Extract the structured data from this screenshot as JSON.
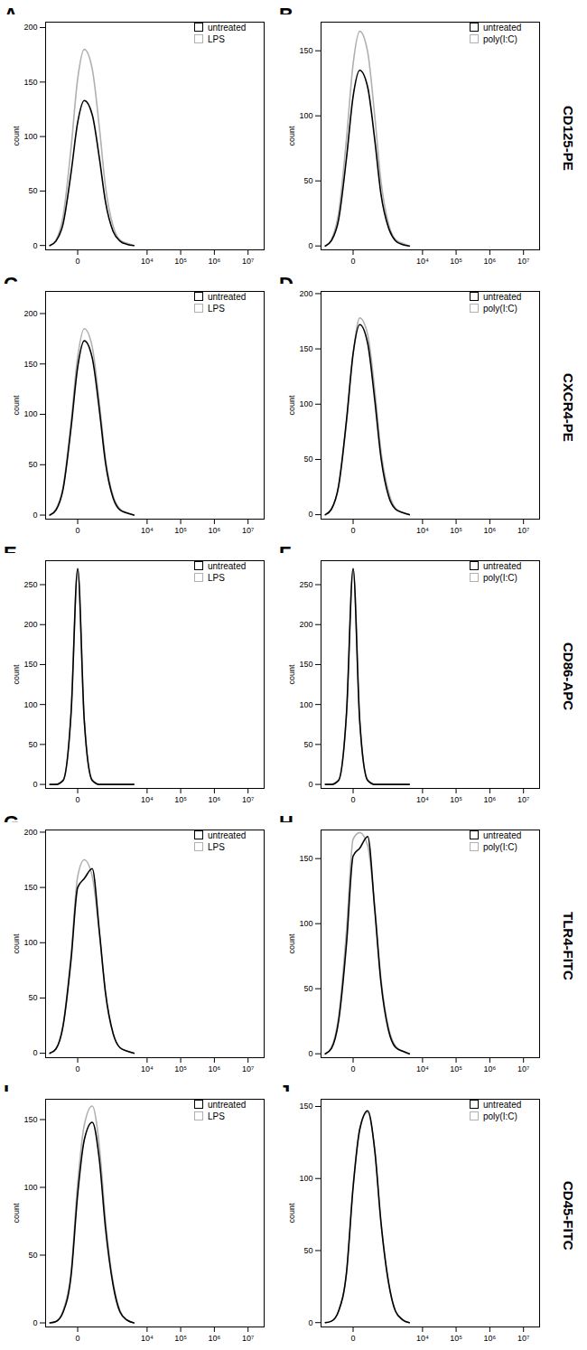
{
  "chart_data": [
    {
      "type": "line",
      "title": "A",
      "ylabel": "count",
      "log": "x",
      "legend": "top-right",
      "x": [
        -500,
        -300,
        -150,
        -50,
        0,
        50,
        150,
        300,
        500,
        900,
        1500,
        2500,
        4000
      ],
      "xlim": [
        -700,
        30000000
      ],
      "xticks": [
        0,
        {
          "value": 10000,
          "label": "10⁴"
        },
        {
          "value": 100000,
          "label": "10⁵"
        },
        {
          "value": 1000000,
          "label": "10⁶"
        },
        {
          "value": 10000000,
          "label": "10⁷"
        }
      ],
      "ylim": [
        -4,
        205
      ],
      "yticks": [
        0,
        50,
        100,
        150,
        200
      ],
      "series": [
        {
          "name": "untreated",
          "color": "#000000",
          "values": [
            0,
            4,
            20,
            67,
            113,
            133,
            120,
            80,
            40,
            13,
            4,
            1,
            0
          ]
        },
        {
          "name": "LPS",
          "color": "#b0b0b0",
          "values": [
            0,
            5,
            27,
            90,
            153,
            180,
            162,
            108,
            54,
            18,
            5,
            2,
            0
          ]
        }
      ]
    },
    {
      "type": "line",
      "title": "B",
      "ylabel": "count",
      "log": "x",
      "legend": "top-right",
      "x": [
        -500,
        -300,
        -150,
        -50,
        0,
        50,
        150,
        300,
        500,
        900,
        1500,
        2500,
        4000
      ],
      "xlim": [
        -700,
        30000000
      ],
      "xticks": [
        0,
        {
          "value": 10000,
          "label": "10⁴"
        },
        {
          "value": 100000,
          "label": "10⁵"
        },
        {
          "value": 1000000,
          "label": "10⁶"
        },
        {
          "value": 10000000,
          "label": "10⁷"
        }
      ],
      "ylim": [
        -3,
        172
      ],
      "yticks": [
        0,
        50,
        100,
        150
      ],
      "series": [
        {
          "name": "untreated",
          "color": "#000000",
          "values": [
            0,
            4,
            20,
            68,
            115,
            135,
            122,
            81,
            40,
            14,
            4,
            1,
            0
          ]
        },
        {
          "name": "poly(I:C)",
          "color": "#b0b0b0",
          "values": [
            0,
            5,
            25,
            83,
            140,
            165,
            149,
            99,
            50,
            17,
            5,
            2,
            0
          ]
        }
      ]
    },
    {
      "type": "line",
      "title": "C",
      "ylabel": "count",
      "log": "x",
      "legend": "top-right",
      "x": [
        -500,
        -300,
        -150,
        -50,
        0,
        50,
        150,
        300,
        500,
        900,
        1500,
        2500,
        4000
      ],
      "xlim": [
        -700,
        30000000
      ],
      "xticks": [
        0,
        {
          "value": 10000,
          "label": "10⁴"
        },
        {
          "value": 100000,
          "label": "10⁵"
        },
        {
          "value": 1000000,
          "label": "10⁶"
        },
        {
          "value": 10000000,
          "label": "10⁷"
        }
      ],
      "ylim": [
        -4,
        222
      ],
      "yticks": [
        0,
        50,
        100,
        150,
        200
      ],
      "series": [
        {
          "name": "untreated",
          "color": "#000000",
          "values": [
            0,
            5,
            26,
            87,
            147,
            173,
            156,
            104,
            52,
            17,
            5,
            2,
            0
          ]
        },
        {
          "name": "LPS",
          "color": "#b0b0b0",
          "values": [
            0,
            6,
            28,
            93,
            157,
            185,
            167,
            111,
            56,
            19,
            6,
            2,
            0
          ]
        }
      ]
    },
    {
      "type": "line",
      "title": "D",
      "ylabel": "count",
      "log": "x",
      "legend": "top-right",
      "x": [
        -500,
        -300,
        -150,
        -50,
        0,
        50,
        150,
        300,
        500,
        900,
        1500,
        2500,
        4000
      ],
      "xlim": [
        -700,
        30000000
      ],
      "xticks": [
        0,
        {
          "value": 10000,
          "label": "10⁴"
        },
        {
          "value": 100000,
          "label": "10⁵"
        },
        {
          "value": 1000000,
          "label": "10⁶"
        },
        {
          "value": 10000000,
          "label": "10⁷"
        }
      ],
      "ylim": [
        -4,
        202
      ],
      "yticks": [
        0,
        50,
        100,
        150,
        200
      ],
      "series": [
        {
          "name": "untreated",
          "color": "#000000",
          "values": [
            0,
            5,
            26,
            86,
            146,
            172,
            155,
            103,
            52,
            17,
            5,
            2,
            0
          ]
        },
        {
          "name": "poly(I:C)",
          "color": "#b0b0b0",
          "values": [
            0,
            5,
            25,
            84,
            145,
            178,
            163,
            112,
            58,
            21,
            6,
            2,
            0
          ]
        }
      ]
    },
    {
      "type": "line",
      "title": "E",
      "ylabel": "count",
      "log": "x",
      "legend": "top-right",
      "x": [
        -500,
        -300,
        -150,
        -50,
        0,
        50,
        150,
        300,
        500,
        900,
        1500,
        2500,
        4000
      ],
      "xlim": [
        -700,
        30000000
      ],
      "xticks": [
        0,
        {
          "value": 10000,
          "label": "10⁴"
        },
        {
          "value": 100000,
          "label": "10⁵"
        },
        {
          "value": 1000000,
          "label": "10⁶"
        },
        {
          "value": 10000000,
          "label": "10⁷"
        }
      ],
      "ylim": [
        -5,
        280
      ],
      "yticks": [
        0,
        50,
        100,
        150,
        200,
        250
      ],
      "series": [
        {
          "name": "untreated",
          "color": "#000000",
          "values": [
            0,
            0,
            5,
            90,
            270,
            80,
            5,
            0,
            0,
            0,
            0,
            0,
            0
          ]
        },
        {
          "name": "LPS",
          "color": "#b0b0b0",
          "values": [
            0,
            0,
            5,
            90,
            270,
            80,
            5,
            0,
            0,
            0,
            0,
            0,
            0
          ]
        }
      ]
    },
    {
      "type": "line",
      "title": "F",
      "ylabel": "count",
      "log": "x",
      "legend": "top-right",
      "x": [
        -500,
        -300,
        -150,
        -50,
        0,
        50,
        150,
        300,
        500,
        900,
        1500,
        2500,
        4000
      ],
      "xlim": [
        -700,
        30000000
      ],
      "xticks": [
        0,
        {
          "value": 10000,
          "label": "10⁴"
        },
        {
          "value": 100000,
          "label": "10⁵"
        },
        {
          "value": 1000000,
          "label": "10⁶"
        },
        {
          "value": 10000000,
          "label": "10⁷"
        }
      ],
      "ylim": [
        -5,
        280
      ],
      "yticks": [
        0,
        50,
        100,
        150,
        200,
        250
      ],
      "series": [
        {
          "name": "untreated",
          "color": "#000000",
          "values": [
            0,
            0,
            5,
            90,
            270,
            80,
            5,
            0,
            0,
            0,
            0,
            0,
            0
          ]
        },
        {
          "name": "poly(I:C)",
          "color": "#b0b0b0",
          "values": [
            0,
            0,
            5,
            90,
            270,
            80,
            5,
            0,
            0,
            0,
            0,
            0,
            0
          ]
        }
      ]
    },
    {
      "type": "line",
      "title": "G",
      "ylabel": "count",
      "log": "x",
      "legend": "top-right",
      "x": [
        -500,
        -300,
        -150,
        -50,
        0,
        50,
        150,
        300,
        500,
        900,
        1500,
        2500,
        4000
      ],
      "xlim": [
        -700,
        30000000
      ],
      "xticks": [
        0,
        {
          "value": 10000,
          "label": "10⁴"
        },
        {
          "value": 100000,
          "label": "10⁵"
        },
        {
          "value": 1000000,
          "label": "10⁶"
        },
        {
          "value": 10000000,
          "label": "10⁷"
        }
      ],
      "ylim": [
        -4,
        202
      ],
      "yticks": [
        0,
        50,
        100,
        150,
        200
      ],
      "series": [
        {
          "name": "untreated",
          "color": "#000000",
          "values": [
            0,
            4,
            25,
            85,
            150,
            158,
            167,
            110,
            55,
            18,
            5,
            2,
            0
          ]
        },
        {
          "name": "LPS",
          "color": "#b0b0b0",
          "values": [
            0,
            4,
            26,
            90,
            160,
            175,
            160,
            108,
            54,
            18,
            5,
            2,
            0
          ]
        }
      ]
    },
    {
      "type": "line",
      "title": "H",
      "ylabel": "count",
      "log": "x",
      "legend": "top-right",
      "x": [
        -500,
        -300,
        -150,
        -50,
        0,
        50,
        150,
        300,
        500,
        900,
        1500,
        2500,
        4000
      ],
      "xlim": [
        -700,
        30000000
      ],
      "xticks": [
        0,
        {
          "value": 10000,
          "label": "10⁴"
        },
        {
          "value": 100000,
          "label": "10⁵"
        },
        {
          "value": 1000000,
          "label": "10⁶"
        },
        {
          "value": 10000000,
          "label": "10⁷"
        }
      ],
      "ylim": [
        -3,
        172
      ],
      "yticks": [
        0,
        50,
        100,
        150
      ],
      "series": [
        {
          "name": "untreated",
          "color": "#000000",
          "values": [
            0,
            4,
            25,
            85,
            152,
            158,
            167,
            110,
            55,
            18,
            5,
            2,
            0
          ]
        },
        {
          "name": "poly(I:C)",
          "color": "#b0b0b0",
          "values": [
            0,
            5,
            28,
            95,
            165,
            170,
            160,
            112,
            58,
            20,
            6,
            2,
            0
          ]
        }
      ]
    },
    {
      "type": "line",
      "title": "I",
      "ylabel": "count",
      "log": "x",
      "legend": "top-right",
      "x": [
        -500,
        -300,
        -150,
        -50,
        0,
        50,
        150,
        300,
        500,
        900,
        1500,
        2500,
        4000
      ],
      "xlim": [
        -700,
        30000000
      ],
      "xticks": [
        0,
        {
          "value": 10000,
          "label": "10⁴"
        },
        {
          "value": 100000,
          "label": "10⁵"
        },
        {
          "value": 1000000,
          "label": "10⁶"
        },
        {
          "value": 10000000,
          "label": "10⁷"
        }
      ],
      "ylim": [
        -3,
        165
      ],
      "yticks": [
        0,
        50,
        100,
        150
      ],
      "series": [
        {
          "name": "untreated",
          "color": "#000000",
          "values": [
            0,
            1,
            8,
            35,
            95,
            135,
            148,
            120,
            70,
            28,
            8,
            2,
            0
          ]
        },
        {
          "name": "LPS",
          "color": "#b0b0b0",
          "values": [
            0,
            1,
            9,
            38,
            103,
            146,
            160,
            130,
            76,
            30,
            9,
            2,
            0
          ]
        }
      ]
    },
    {
      "type": "line",
      "title": "J",
      "ylabel": "count",
      "log": "x",
      "legend": "top-right",
      "x": [
        -500,
        -300,
        -150,
        -50,
        0,
        50,
        150,
        300,
        500,
        900,
        1500,
        2500,
        4000
      ],
      "xlim": [
        -700,
        30000000
      ],
      "xticks": [
        0,
        {
          "value": 10000,
          "label": "10⁴"
        },
        {
          "value": 100000,
          "label": "10⁵"
        },
        {
          "value": 1000000,
          "label": "10⁶"
        },
        {
          "value": 10000000,
          "label": "10⁷"
        }
      ],
      "ylim": [
        -3,
        155
      ],
      "yticks": [
        0,
        50,
        100,
        150
      ],
      "series": [
        {
          "name": "untreated",
          "color": "#000000",
          "values": [
            0,
            1,
            8,
            35,
            94,
            134,
            147,
            119,
            70,
            28,
            8,
            2,
            0
          ]
        },
        {
          "name": "poly(I:C)",
          "color": "#b0b0b0",
          "values": [
            0,
            1,
            8,
            35,
            95,
            134,
            146,
            119,
            70,
            28,
            8,
            2,
            0
          ]
        }
      ]
    }
  ],
  "row_labels": [
    "CD125-PE",
    "CXCR4-PE",
    "CD86-APC",
    "TLR4-FITC",
    "CD45-FITC"
  ]
}
